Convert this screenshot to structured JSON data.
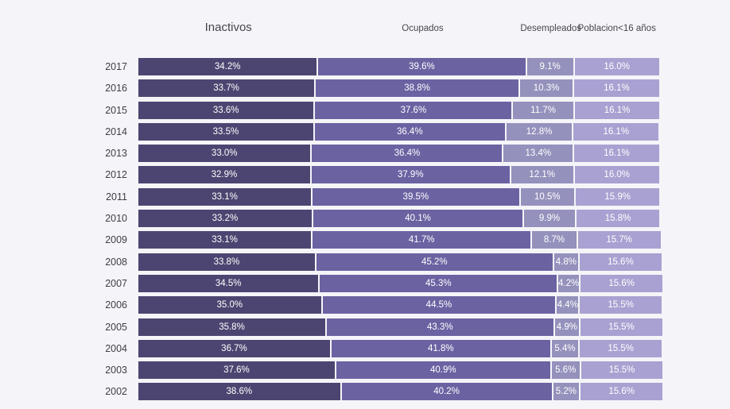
{
  "page": {
    "background_color": "#f5f5f9",
    "text_color_axis": "#3d3d47",
    "text_color_headers": "#45454f",
    "bar_label_color": "#ffffff"
  },
  "chart_data": {
    "type": "bar",
    "orientation": "horizontal-stacked",
    "title": "",
    "xlabel": "",
    "ylabel": "",
    "xlim": [
      0,
      100
    ],
    "unit": "%",
    "grid": false,
    "legend_position": "top-as-column-headers",
    "series_labels": [
      "Inactivos",
      "Ocupados",
      "Desempleados",
      "Poblacion<16 años"
    ],
    "series_colors": [
      "#4d4571",
      "#6b62a2",
      "#9491bc",
      "#a9a1d1"
    ],
    "categories": [
      "2017",
      "2016",
      "2015",
      "2014",
      "2013",
      "2012",
      "2011",
      "2010",
      "2009",
      "2008",
      "2007",
      "2006",
      "2005",
      "2004",
      "2003",
      "2002"
    ],
    "rows": [
      {
        "year": "2017",
        "values": [
          34.2,
          39.6,
          9.1,
          16.0
        ],
        "labels": [
          "34.2%",
          "39.6%",
          "9.1%",
          "16.0%"
        ]
      },
      {
        "year": "2016",
        "values": [
          33.7,
          38.8,
          10.3,
          16.1
        ],
        "labels": [
          "33.7%",
          "38.8%",
          "10.3%",
          "16.1%"
        ]
      },
      {
        "year": "2015",
        "values": [
          33.6,
          37.6,
          11.7,
          16.1
        ],
        "labels": [
          "33.6%",
          "37.6%",
          "11.7%",
          "16.1%"
        ]
      },
      {
        "year": "2014",
        "values": [
          33.5,
          36.4,
          12.8,
          16.1
        ],
        "labels": [
          "33.5%",
          "36.4%",
          "12.8%",
          "16.1%"
        ]
      },
      {
        "year": "2013",
        "values": [
          33.0,
          36.4,
          13.4,
          16.1
        ],
        "labels": [
          "33.0%",
          "36.4%",
          "13.4%",
          "16.1%"
        ]
      },
      {
        "year": "2012",
        "values": [
          32.9,
          37.9,
          12.1,
          16.0
        ],
        "labels": [
          "32.9%",
          "37.9%",
          "12.1%",
          "16.0%"
        ]
      },
      {
        "year": "2011",
        "values": [
          33.1,
          39.5,
          10.5,
          15.9
        ],
        "labels": [
          "33.1%",
          "39.5%",
          "10.5%",
          "15.9%"
        ]
      },
      {
        "year": "2010",
        "values": [
          33.2,
          40.1,
          9.9,
          15.8
        ],
        "labels": [
          "33.2%",
          "40.1%",
          "9.9%",
          "15.8%"
        ]
      },
      {
        "year": "2009",
        "values": [
          33.1,
          41.7,
          8.7,
          15.7
        ],
        "labels": [
          "33.1%",
          "41.7%",
          "8.7%",
          "15.7%"
        ]
      },
      {
        "year": "2008",
        "values": [
          33.8,
          45.2,
          4.8,
          15.6
        ],
        "labels": [
          "33.8%",
          "45.2%",
          "4.8%",
          "15.6%"
        ]
      },
      {
        "year": "2007",
        "values": [
          34.5,
          45.3,
          4.2,
          15.6
        ],
        "labels": [
          "34.5%",
          "45.3%",
          "4.2%",
          "15.6%"
        ]
      },
      {
        "year": "2006",
        "values": [
          35.0,
          44.5,
          4.4,
          15.5
        ],
        "labels": [
          "35.0%",
          "44.5%",
          "4.4%",
          "15.5%"
        ]
      },
      {
        "year": "2005",
        "values": [
          35.8,
          43.3,
          4.9,
          15.5
        ],
        "labels": [
          "35.8%",
          "43.3%",
          "4.9%",
          "15.5%"
        ]
      },
      {
        "year": "2004",
        "values": [
          36.7,
          41.8,
          5.4,
          15.5
        ],
        "labels": [
          "36.7%",
          "41.8%",
          "5.4%",
          "15.5%"
        ]
      },
      {
        "year": "2003",
        "values": [
          37.6,
          40.9,
          5.6,
          15.5
        ],
        "labels": [
          "37.6%",
          "40.9%",
          "5.6%",
          "15.5%"
        ]
      },
      {
        "year": "2002",
        "values": [
          38.6,
          40.2,
          5.2,
          15.6
        ],
        "labels": [
          "38.6%",
          "40.2%",
          "5.2%",
          "15.6%"
        ]
      }
    ]
  }
}
